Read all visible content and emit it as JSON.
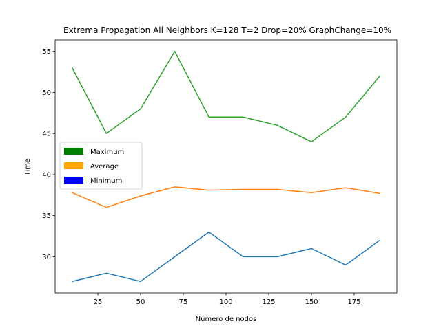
{
  "chart_data": {
    "type": "line",
    "title": "Extrema Propagation All Neighbors K=128 T=2  Drop=20% GraphChange=10%",
    "xlabel": "Número de nodos",
    "ylabel": "Time",
    "x": [
      10,
      30,
      50,
      70,
      90,
      110,
      130,
      150,
      170,
      190
    ],
    "xlim": [
      0,
      200
    ],
    "ylim": [
      25.6,
      56.4
    ],
    "xticks": [
      25,
      50,
      75,
      100,
      125,
      150,
      175
    ],
    "yticks": [
      30,
      35,
      40,
      45,
      50,
      55
    ],
    "grid": false,
    "legend_position": "center-left",
    "series": [
      {
        "name": "Maximum",
        "line_color": "#2ca02c",
        "legend_color": "#008000",
        "values": [
          53,
          45,
          48,
          55,
          47,
          47,
          46,
          44,
          47,
          52
        ]
      },
      {
        "name": "Average",
        "line_color": "#ff7f0e",
        "legend_color": "#ffa500",
        "values": [
          37.8,
          36.0,
          37.4,
          38.5,
          38.1,
          38.2,
          38.2,
          37.8,
          38.4,
          37.7
        ]
      },
      {
        "name": "Minimum",
        "line_color": "#1f77b4",
        "legend_color": "#0000ff",
        "values": [
          27,
          28,
          27,
          30,
          33,
          30,
          30,
          31,
          29,
          32
        ]
      }
    ]
  }
}
